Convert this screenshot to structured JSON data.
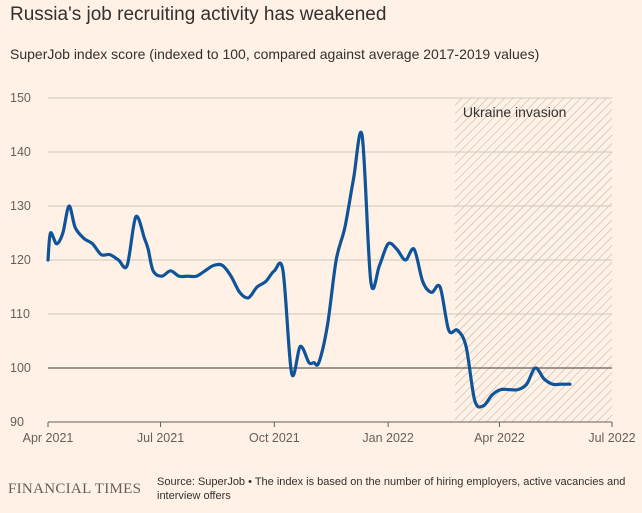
{
  "title": "Russia's job recruiting activity has weakened",
  "subtitle": "SuperJob index score (indexed to 100, compared against average 2017-2019 values)",
  "footer": {
    "logo": "FINANCIAL TIMES",
    "source": "Source: SuperJob • The index is based on the number of hiring employers, active vacancies and interview offers"
  },
  "colors": {
    "background": "#fff1e5",
    "line": "#0f5499",
    "grid": "#cec6b9",
    "baseline": "#66605c",
    "shade_hatch": "#b5aea6"
  },
  "chart_data": {
    "type": "line",
    "title": "Russia's job recruiting activity has weakened",
    "subtitle": "SuperJob index score (indexed to 100, compared against average 2017-2019 values)",
    "xlabel": "",
    "ylabel": "",
    "xlim": [
      "2021-04-01",
      "2022-07-01"
    ],
    "ylim": [
      90,
      150
    ],
    "x_ticks": [
      "Apr 2021",
      "Jul 2021",
      "Oct 2021",
      "Jan 2022",
      "Apr 2022",
      "Jul 2022"
    ],
    "y_ticks": [
      90,
      100,
      110,
      120,
      130,
      140,
      150
    ],
    "reference_line": 100,
    "grid": true,
    "legend": "none",
    "shaded_region": {
      "label": "Ukraine invasion",
      "start": "2022-02-24",
      "end": "2022-07-01"
    },
    "series": [
      {
        "x": [
          "2021-04-01",
          "2021-04-03",
          "2021-04-08",
          "2021-04-13",
          "2021-04-18",
          "2021-04-23",
          "2021-04-30",
          "2021-05-07",
          "2021-05-14",
          "2021-05-21",
          "2021-05-28",
          "2021-06-04",
          "2021-06-11",
          "2021-06-18",
          "2021-06-21",
          "2021-06-25",
          "2021-07-02",
          "2021-07-09",
          "2021-07-16",
          "2021-07-23",
          "2021-07-30",
          "2021-08-06",
          "2021-08-13",
          "2021-08-20",
          "2021-08-27",
          "2021-09-03",
          "2021-09-10",
          "2021-09-17",
          "2021-09-24",
          "2021-10-01",
          "2021-10-08",
          "2021-10-15",
          "2021-10-22",
          "2021-10-29",
          "2021-11-02",
          "2021-11-06",
          "2021-11-13",
          "2021-11-20",
          "2021-11-27",
          "2021-12-04",
          "2021-12-11",
          "2021-12-18",
          "2021-12-25",
          "2022-01-01",
          "2022-01-08",
          "2022-01-15",
          "2022-01-22",
          "2022-01-29",
          "2022-02-05",
          "2022-02-12",
          "2022-02-19",
          "2022-02-26",
          "2022-03-05",
          "2022-03-12",
          "2022-03-19",
          "2022-03-26",
          "2022-04-02",
          "2022-04-09",
          "2022-04-16",
          "2022-04-23",
          "2022-04-30",
          "2022-05-07",
          "2022-05-14",
          "2022-05-21",
          "2022-05-28"
        ],
        "y": [
          120,
          125,
          123,
          125,
          130,
          126,
          124,
          123,
          121,
          121,
          120,
          119,
          128,
          124,
          122,
          118,
          117,
          118,
          117,
          117,
          117,
          118,
          119,
          119,
          117,
          114,
          113,
          115,
          116,
          118,
          118,
          99,
          104,
          101,
          101,
          101,
          108,
          120,
          126,
          135,
          143,
          116,
          119,
          123,
          122,
          120,
          122,
          116,
          114,
          115,
          107,
          107,
          104,
          94,
          93,
          95,
          96,
          96,
          96,
          97,
          100,
          98,
          97,
          97,
          97
        ]
      }
    ]
  }
}
